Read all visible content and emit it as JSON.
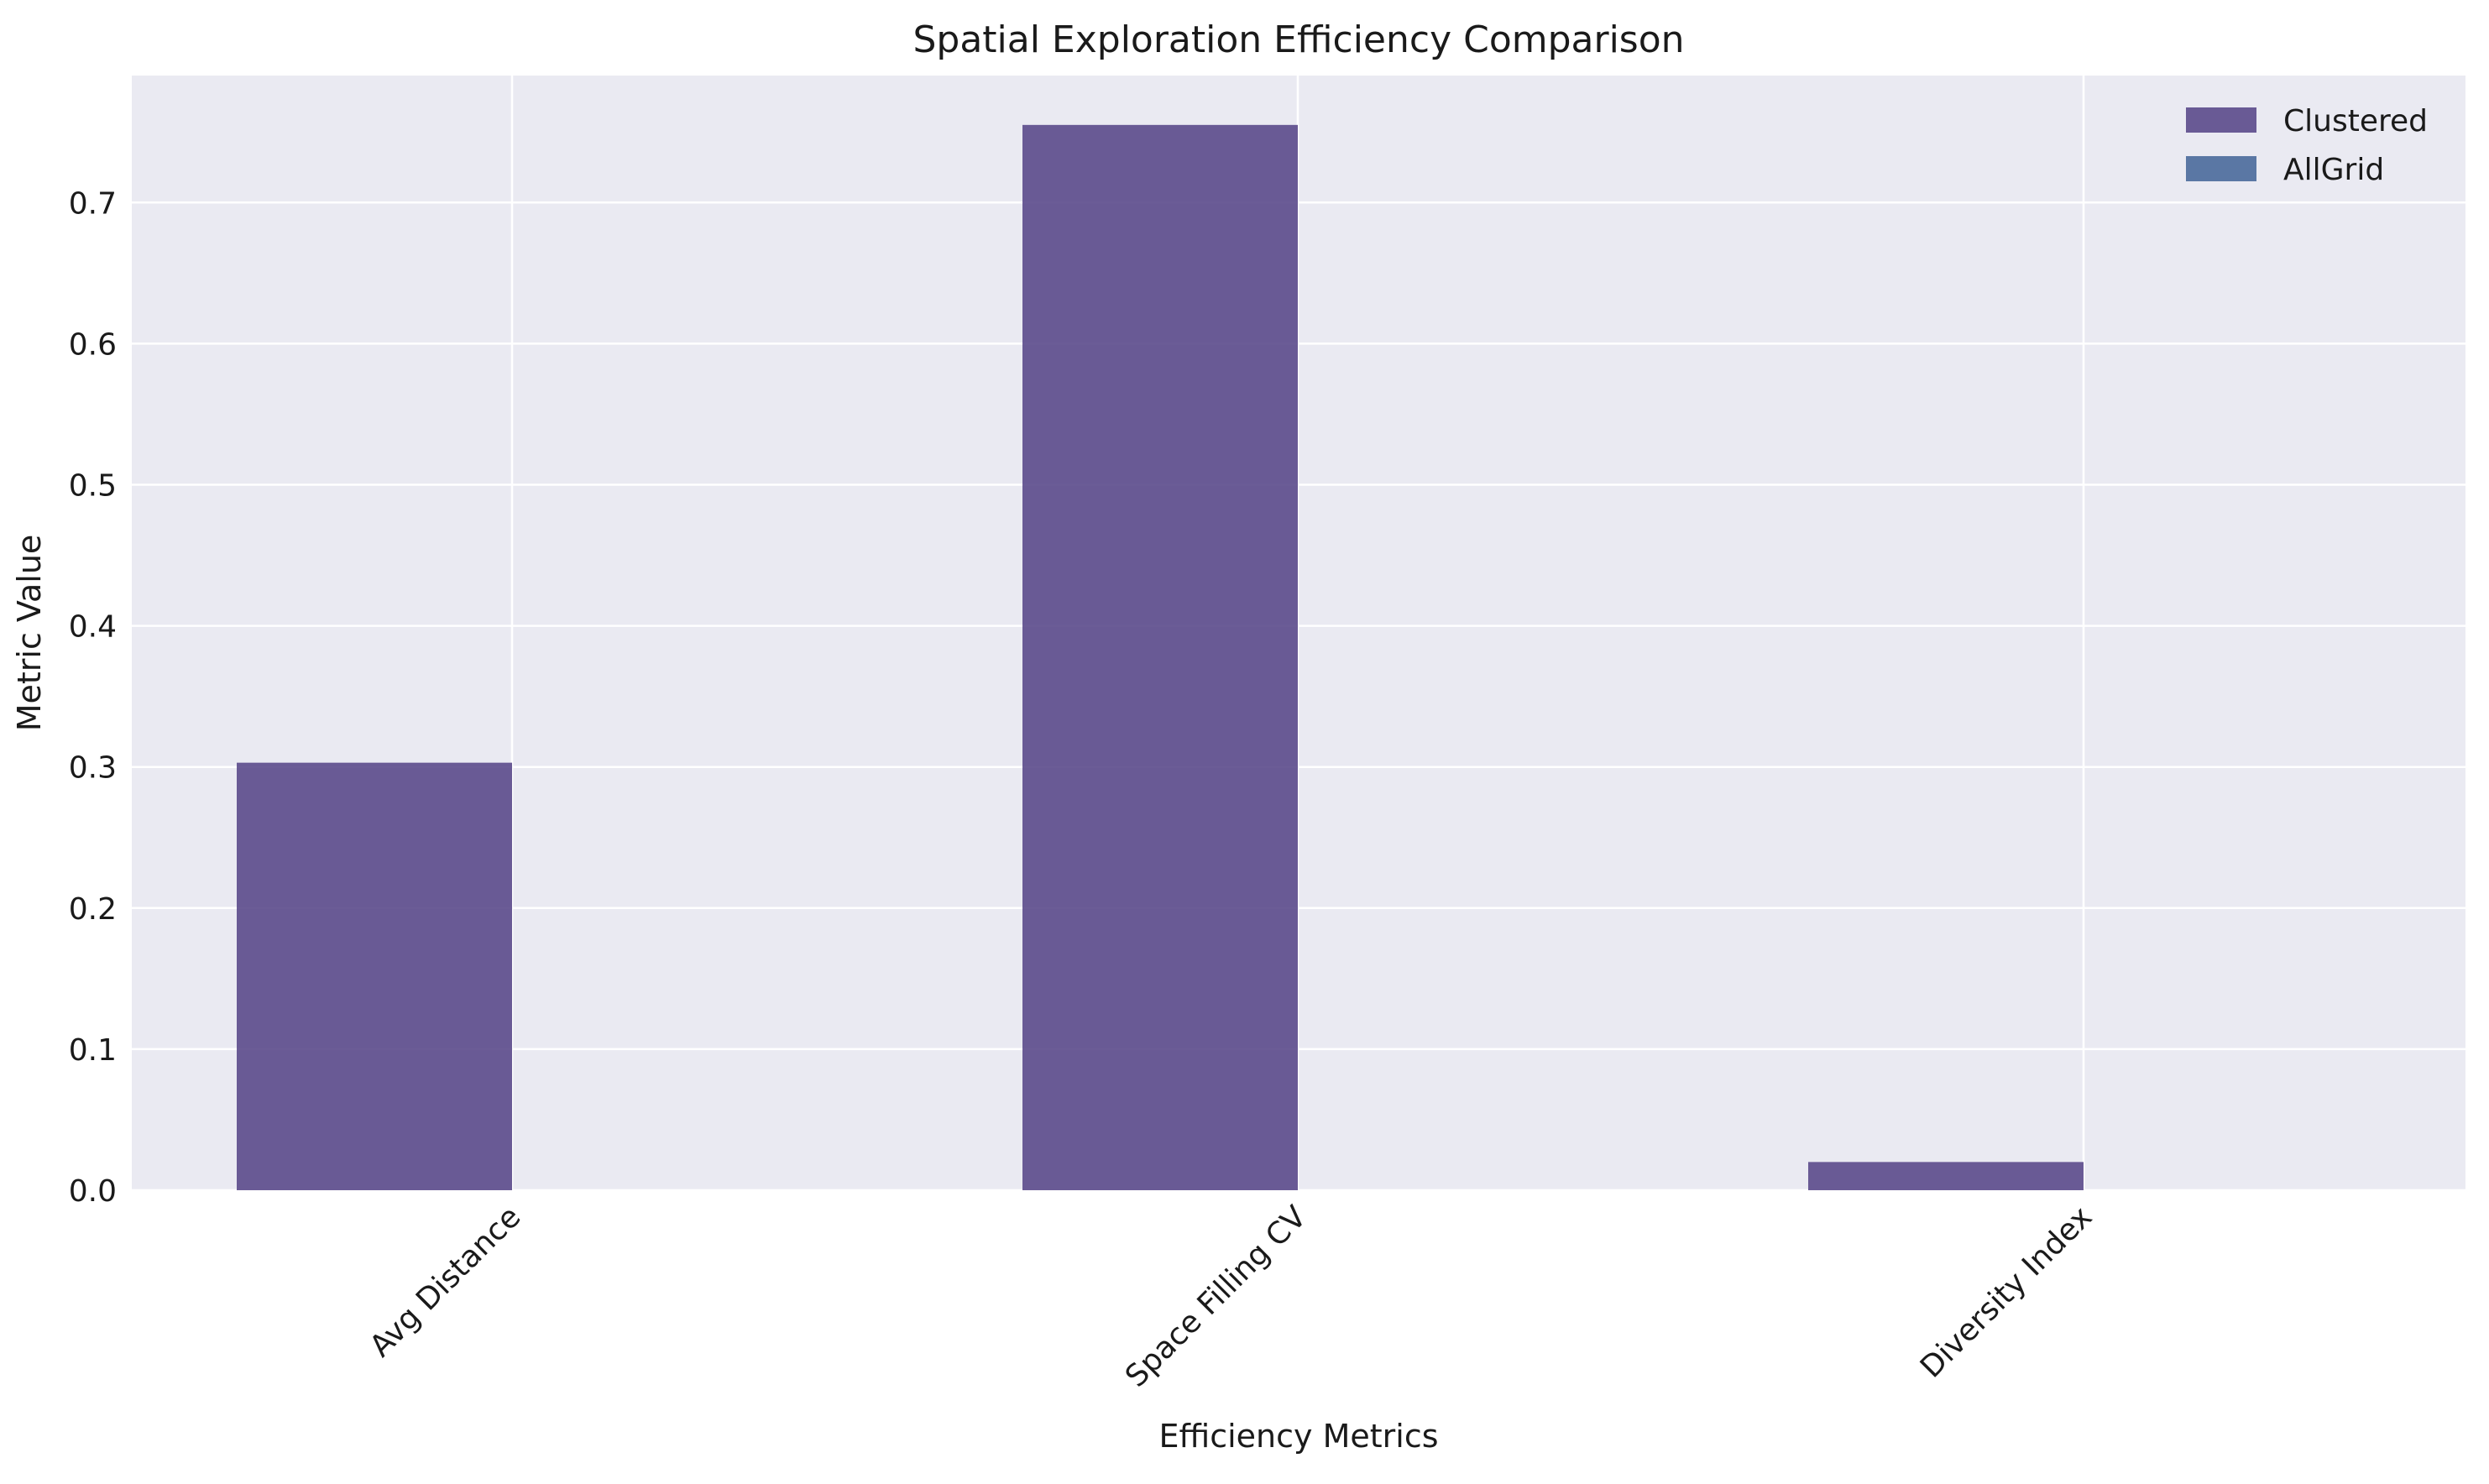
{
  "chart_data": {
    "type": "bar",
    "title": "Spatial Exploration Efficiency Comparison",
    "xlabel": "Efficiency Metrics",
    "ylabel": "Metric Value",
    "categories": [
      "Avg Distance",
      "Space Filling CV",
      "Diversity Index"
    ],
    "series": [
      {
        "name": "Clustered",
        "values": [
          0.303,
          0.755,
          0.02
        ],
        "color": "#5b4a8b"
      },
      {
        "name": "AllGrid",
        "values": [
          0,
          0,
          0
        ],
        "color": "#4a6a9b"
      }
    ],
    "ylim": [
      0,
      0.79
    ],
    "yticks": [
      "0.0",
      "0.1",
      "0.2",
      "0.3",
      "0.4",
      "0.5",
      "0.6",
      "0.7"
    ],
    "ytick_values": [
      0,
      0.1,
      0.2,
      0.3,
      0.4,
      0.5,
      0.6,
      0.7
    ],
    "grid": true,
    "legend_position": "top-right",
    "plot_background": "#eaeaf2",
    "grid_color": "#ffffff"
  }
}
